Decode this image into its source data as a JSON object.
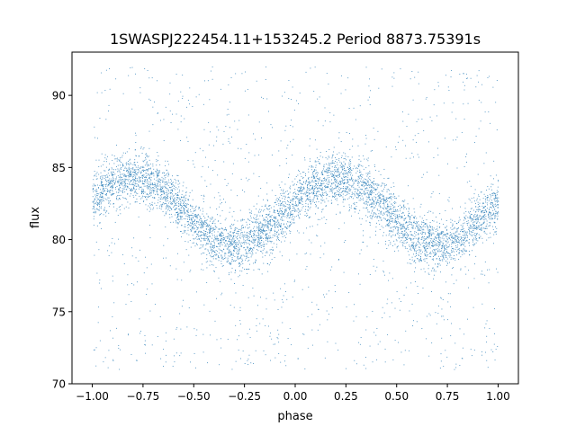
{
  "chart_data": {
    "type": "scatter",
    "title": "1SWASPJ222454.11+153245.2 Period 8873.75391s",
    "xlabel": "phase",
    "ylabel": "flux",
    "xlim": [
      -1.1,
      1.1
    ],
    "ylim": [
      70,
      93
    ],
    "x_ticks": [
      -1.0,
      -0.75,
      -0.5,
      -0.25,
      0.0,
      0.25,
      0.5,
      0.75,
      1.0
    ],
    "x_tick_labels": [
      "−1.00",
      "−0.75",
      "−0.50",
      "−0.25",
      "0.00",
      "0.25",
      "0.50",
      "0.75",
      "1.00"
    ],
    "y_ticks": [
      70,
      75,
      80,
      85,
      90
    ],
    "y_tick_labels": [
      "70",
      "75",
      "80",
      "85",
      "90"
    ],
    "grid": false,
    "legend": "none",
    "series_color": "#1f77b4",
    "series": [
      {
        "phase_range": [
          -1.0,
          1.0
        ],
        "model": "sinusoid",
        "mean_flux": 82.0,
        "amplitude": 2.3,
        "max_phase": [
          -0.8,
          0.2
        ],
        "min_phase": [
          -0.3,
          0.7
        ],
        "band_halfwidth": 1.4,
        "outlier_range": [
          71,
          92
        ]
      }
    ]
  }
}
